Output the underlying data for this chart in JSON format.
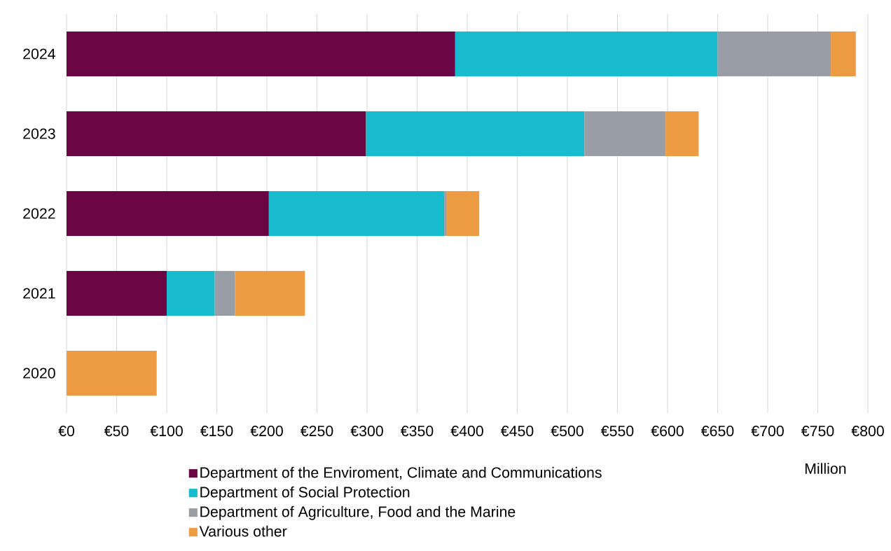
{
  "chart_data": {
    "type": "bar",
    "orientation": "horizontal",
    "stacked": true,
    "categories": [
      "2024",
      "2023",
      "2022",
      "2021",
      "2020"
    ],
    "series": [
      {
        "name": "Department of the Enviroment, Climate and Communications",
        "color": "#6b0644",
        "values": [
          388,
          299,
          202,
          100,
          null
        ]
      },
      {
        "name": "Department of Social Protection",
        "color": "#19bccf",
        "values": [
          262,
          218,
          175,
          48,
          null
        ]
      },
      {
        "name": "Department of Agriculture, Food and the Marine",
        "color": "#999da5",
        "values": [
          113,
          81,
          2,
          20,
          null
        ]
      },
      {
        "name": "Various other",
        "color": "#ee9c44",
        "values": [
          25,
          33,
          33,
          70,
          90
        ]
      }
    ],
    "xlabel": "Million",
    "xlim": [
      0,
      800
    ],
    "xticks": [
      {
        "value": 0,
        "label": "€0"
      },
      {
        "value": 50,
        "label": "€50"
      },
      {
        "value": 100,
        "label": "€100"
      },
      {
        "value": 150,
        "label": "€150"
      },
      {
        "value": 200,
        "label": "€200"
      },
      {
        "value": 250,
        "label": "€250"
      },
      {
        "value": 300,
        "label": "€300"
      },
      {
        "value": 350,
        "label": "€350"
      },
      {
        "value": 400,
        "label": "€400"
      },
      {
        "value": 450,
        "label": "€450"
      },
      {
        "value": 500,
        "label": "€500"
      },
      {
        "value": 550,
        "label": "€550"
      },
      {
        "value": 600,
        "label": "€600"
      },
      {
        "value": 650,
        "label": "€650"
      },
      {
        "value": 700,
        "label": "€700"
      },
      {
        "value": 750,
        "label": "€750"
      },
      {
        "value": 800,
        "label": "€800"
      }
    ],
    "grid": "x",
    "legend": "bottom"
  }
}
